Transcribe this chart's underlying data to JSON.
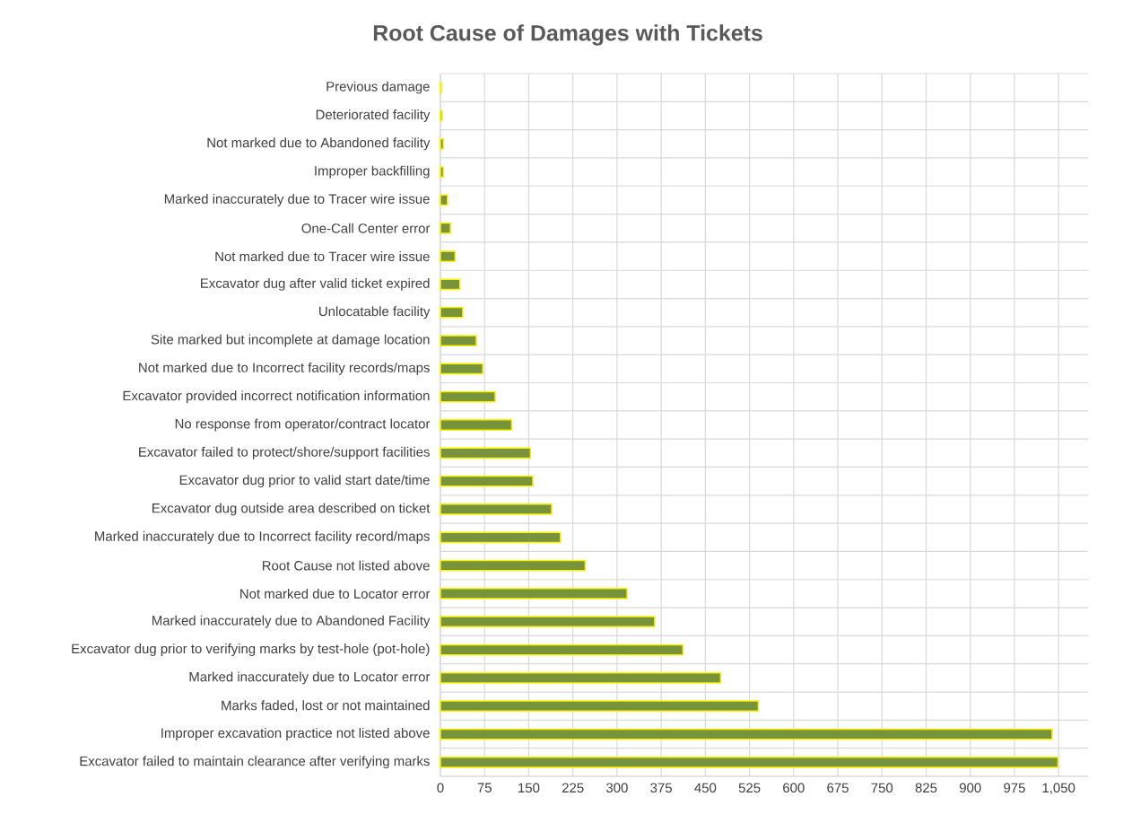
{
  "chart_data": {
    "type": "bar",
    "orientation": "horizontal",
    "title": "Root Cause of Damages with Tickets",
    "categories": [
      "Previous damage",
      "Deteriorated facility",
      "Not marked due to Abandoned facility",
      "Improper backfilling",
      "Marked inaccurately due to Tracer wire issue",
      "One-Call Center error",
      "Not marked due to Tracer wire issue",
      "Excavator dug after valid ticket expired",
      "Unlocatable facility",
      "Site marked but incomplete at damage location",
      "Not marked due to Incorrect facility records/maps",
      "Excavator provided incorrect notification information",
      "No response from operator/contract locator",
      "Excavator failed to protect/shore/support facilities",
      "Excavator dug prior to valid start date/time",
      "Excavator dug outside area described on ticket",
      "Marked inaccurately due to Incorrect facility record/maps",
      "Root Cause not listed above",
      "Not marked due to Locator error",
      "Marked inaccurately due to Abandoned Facility",
      "Excavator dug prior to verifying marks by test-hole (pot-hole)",
      "Marked inaccurately due to Locator error",
      "Marks faded, lost or not maintained",
      "Improper excavation practice not listed above",
      "Excavator failed to maintain clearance after verifying marks"
    ],
    "values": [
      2,
      3,
      5,
      5,
      12,
      17,
      25,
      33,
      38,
      61,
      72,
      93,
      121,
      153,
      157,
      189,
      204,
      246,
      317,
      364,
      412,
      476,
      540,
      1039,
      1049
    ],
    "color": "#77933c",
    "xlim": [
      0,
      1100
    ],
    "xticks": [
      0,
      75,
      150,
      225,
      300,
      375,
      450,
      525,
      600,
      675,
      750,
      825,
      900,
      975,
      {
        "value": 1050,
        "label": "1,050"
      }
    ],
    "grid": true
  }
}
